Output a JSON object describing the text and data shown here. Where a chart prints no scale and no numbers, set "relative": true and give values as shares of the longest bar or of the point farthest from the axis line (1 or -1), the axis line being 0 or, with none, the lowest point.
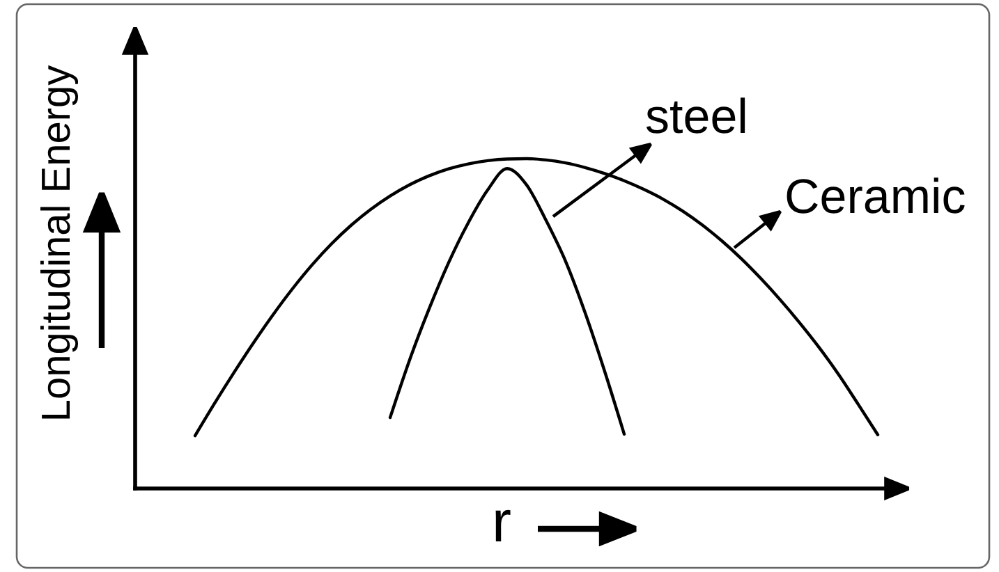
{
  "chart_data": {
    "type": "line",
    "xlabel": "r",
    "ylabel": "Longitudinal Energy",
    "relative": true,
    "categories": [
      null,
      null,
      null,
      null,
      null,
      null,
      null,
      null,
      null,
      null,
      null,
      null,
      null,
      null,
      null,
      null,
      null,
      null,
      null,
      null,
      null,
      null,
      null,
      null,
      null,
      null,
      null,
      null,
      null,
      null,
      null,
      null,
      null,
      null,
      null,
      null
    ],
    "series": [
      {
        "name": "Ceramic",
        "color": "#000000",
        "values": [
          0.16,
          0.258,
          0.352,
          0.442,
          0.527,
          0.606,
          0.678,
          0.742,
          0.798,
          0.846,
          0.887,
          0.921,
          0.948,
          0.969,
          0.984,
          0.994,
          0.999,
          1.0,
          0.996,
          0.987,
          0.973,
          0.955,
          0.933,
          0.907,
          0.877,
          0.841,
          0.799,
          0.751,
          0.697,
          0.637,
          0.572,
          0.502,
          0.427,
          0.345,
          0.255,
          0.163
        ]
      },
      {
        "name": "steel",
        "color": "#000000",
        "values": [
          null,
          null,
          null,
          null,
          null,
          null,
          null,
          null,
          null,
          null,
          0.215,
          0.39,
          0.545,
          0.685,
          0.805,
          0.905,
          0.97,
          0.92,
          0.812,
          0.688,
          0.532,
          0.355,
          0.165,
          null,
          null,
          null,
          null,
          null,
          null,
          null,
          null,
          null,
          null,
          null,
          null,
          null
        ]
      }
    ]
  }
}
